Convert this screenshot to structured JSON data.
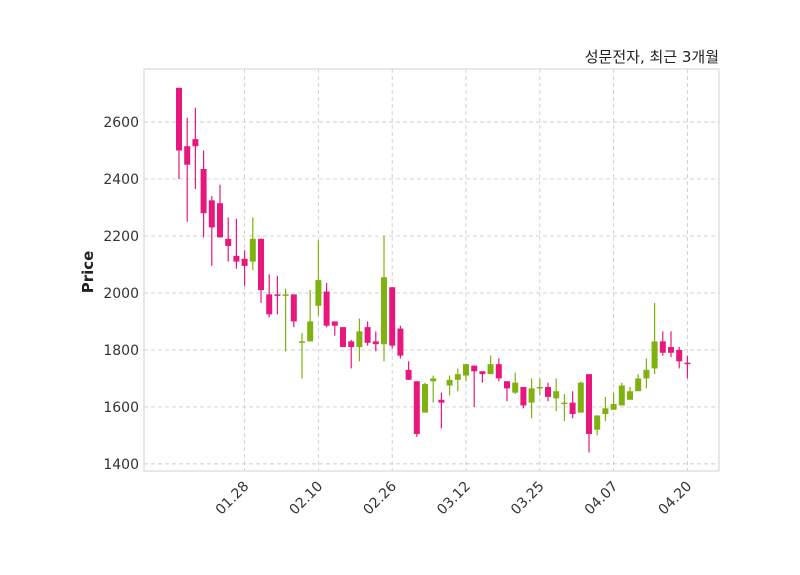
{
  "chart_data": {
    "type": "candlestick",
    "title": "성문전자, 최근 3개월",
    "xlabel": "",
    "ylabel": "Price",
    "ylim": [
      1375,
      2786
    ],
    "yticks": [
      1400,
      1600,
      1800,
      2000,
      2200,
      2400,
      2600
    ],
    "xticks": [
      {
        "index": 8,
        "label": "01.28"
      },
      {
        "index": 17,
        "label": "02.10"
      },
      {
        "index": 26,
        "label": "02.26"
      },
      {
        "index": 35,
        "label": "03.12"
      },
      {
        "index": 44,
        "label": "03.25"
      },
      {
        "index": 53,
        "label": "04.07"
      },
      {
        "index": 62,
        "label": "04.20"
      }
    ],
    "grid": true,
    "colors": {
      "up": "#7fb20e",
      "down": "#e8177d",
      "grid": "#cccccc",
      "frame": "#d9d9d9"
    },
    "ohlc": [
      [
        2720,
        2720,
        2400,
        2500
      ],
      [
        2515,
        2615,
        2250,
        2450
      ],
      [
        2540,
        2650,
        2365,
        2515
      ],
      [
        2435,
        2500,
        2195,
        2280
      ],
      [
        2325,
        2340,
        2095,
        2230
      ],
      [
        2315,
        2380,
        2195,
        2195
      ],
      [
        2190,
        2265,
        2110,
        2165
      ],
      [
        2130,
        2260,
        2085,
        2110
      ],
      [
        2120,
        2150,
        2025,
        2095
      ],
      [
        2110,
        2265,
        2080,
        2190
      ],
      [
        2190,
        2190,
        1965,
        2010
      ],
      [
        1995,
        2065,
        1915,
        1925
      ],
      [
        1995,
        2060,
        1925,
        1990
      ],
      [
        1990,
        2015,
        1795,
        1995
      ],
      [
        1995,
        1995,
        1880,
        1900
      ],
      [
        1825,
        1860,
        1700,
        1830
      ],
      [
        1830,
        2010,
        1830,
        1900
      ],
      [
        1955,
        2185,
        1920,
        2045
      ],
      [
        2005,
        2035,
        1880,
        1885
      ],
      [
        1900,
        1900,
        1850,
        1885
      ],
      [
        1880,
        1880,
        1810,
        1810
      ],
      [
        1830,
        1835,
        1735,
        1810
      ],
      [
        1810,
        1910,
        1760,
        1865
      ],
      [
        1880,
        1900,
        1815,
        1825
      ],
      [
        1830,
        1865,
        1795,
        1820
      ],
      [
        1820,
        2200,
        1760,
        2055
      ],
      [
        2020,
        2020,
        1805,
        1815
      ],
      [
        1875,
        1885,
        1770,
        1780
      ],
      [
        1730,
        1760,
        1695,
        1695
      ],
      [
        1690,
        1690,
        1495,
        1505
      ],
      [
        1580,
        1685,
        1580,
        1680
      ],
      [
        1690,
        1710,
        1615,
        1700
      ],
      [
        1625,
        1650,
        1525,
        1615
      ],
      [
        1675,
        1710,
        1640,
        1695
      ],
      [
        1695,
        1735,
        1655,
        1715
      ],
      [
        1710,
        1750,
        1690,
        1750
      ],
      [
        1745,
        1745,
        1600,
        1725
      ],
      [
        1725,
        1725,
        1685,
        1715
      ],
      [
        1715,
        1780,
        1715,
        1750
      ],
      [
        1750,
        1770,
        1690,
        1700
      ],
      [
        1690,
        1690,
        1620,
        1665
      ],
      [
        1650,
        1720,
        1645,
        1685
      ],
      [
        1670,
        1670,
        1595,
        1605
      ],
      [
        1615,
        1700,
        1560,
        1665
      ],
      [
        1665,
        1700,
        1640,
        1670
      ],
      [
        1670,
        1685,
        1620,
        1635
      ],
      [
        1630,
        1700,
        1585,
        1655
      ],
      [
        1610,
        1645,
        1550,
        1615
      ],
      [
        1615,
        1655,
        1560,
        1575
      ],
      [
        1580,
        1690,
        1580,
        1685
      ],
      [
        1715,
        1715,
        1440,
        1505
      ],
      [
        1520,
        1570,
        1500,
        1570
      ],
      [
        1575,
        1635,
        1550,
        1595
      ],
      [
        1590,
        1650,
        1590,
        1610
      ],
      [
        1605,
        1685,
        1605,
        1675
      ],
      [
        1625,
        1670,
        1625,
        1655
      ],
      [
        1655,
        1715,
        1655,
        1700
      ],
      [
        1700,
        1770,
        1665,
        1730
      ],
      [
        1735,
        1965,
        1715,
        1830
      ],
      [
        1830,
        1865,
        1780,
        1790
      ],
      [
        1810,
        1865,
        1775,
        1790
      ],
      [
        1800,
        1810,
        1735,
        1760
      ],
      [
        1755,
        1780,
        1700,
        1750
      ]
    ]
  }
}
